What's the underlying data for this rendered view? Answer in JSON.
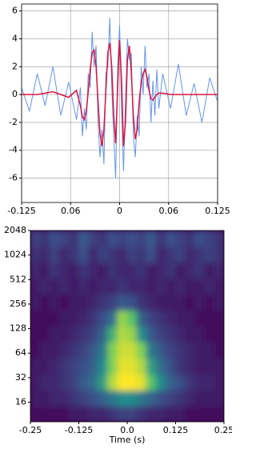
{
  "chart_data": [
    {
      "type": "line",
      "x": [
        -0.125,
        -0.115,
        -0.105,
        -0.095,
        -0.085,
        -0.075,
        -0.065,
        -0.055,
        -0.05,
        -0.0475,
        -0.045,
        -0.0425,
        -0.04,
        -0.0375,
        -0.035,
        -0.0325,
        -0.03,
        -0.0275,
        -0.025,
        -0.0225,
        -0.02,
        -0.0175,
        -0.015,
        -0.0125,
        -0.01,
        -0.0075,
        -0.005,
        -0.0025,
        0,
        0.0025,
        0.005,
        0.0075,
        0.01,
        0.0125,
        0.015,
        0.0175,
        0.02,
        0.0225,
        0.025,
        0.0275,
        0.03,
        0.0325,
        0.035,
        0.0375,
        0.04,
        0.0425,
        0.045,
        0.0475,
        0.05,
        0.055,
        0.065,
        0.075,
        0.085,
        0.095,
        0.105,
        0.115,
        0.125
      ],
      "series": [
        {
          "color": "#6495ed",
          "values": [
            0.5,
            -1.2,
            1.5,
            -0.8,
            2.0,
            -1.5,
            0.9,
            -1.8,
            0.5,
            -3.0,
            -1.0,
            -2.5,
            1.5,
            0.5,
            4.5,
            2.0,
            3.5,
            -2.0,
            -4.5,
            -2.5,
            -5.0,
            1.5,
            2.0,
            5.5,
            0.5,
            -3.0,
            -6.0,
            2.0,
            5.0,
            -1.0,
            -5.5,
            -0.5,
            4.0,
            2.5,
            3.0,
            -3.0,
            -4.5,
            -1.5,
            -3.0,
            2.0,
            0.0,
            3.5,
            0.5,
            1.5,
            -2.0,
            1.0,
            -1.5,
            1.8,
            -1.0,
            1.5,
            -1.0,
            2.2,
            -1.5,
            0.8,
            -2.0,
            1.2,
            -0.5
          ]
        },
        {
          "color": "#dc143c",
          "values": [
            0,
            0,
            0,
            0.1,
            0.2,
            0,
            -0.2,
            0.3,
            -0.8,
            -1.6,
            -1.8,
            -1.2,
            0.2,
            1.8,
            3.0,
            3.2,
            2.0,
            -0.5,
            -2.8,
            -3.7,
            -2.5,
            0.3,
            3.0,
            3.7,
            2.0,
            -1.5,
            -3.5,
            0.5,
            3.9,
            1.0,
            -3.7,
            -2.0,
            2.5,
            3.5,
            1.5,
            -1.5,
            -3.2,
            -2.5,
            -0.5,
            0.8,
            1.5,
            1.8,
            1.2,
            0.3,
            -0.3,
            -0.4,
            -0.2,
            0,
            0.1,
            0.1,
            0,
            0,
            0,
            0,
            0,
            0,
            0
          ]
        }
      ],
      "xlim": [
        -0.125,
        0.125
      ],
      "ylim": [
        -7.75,
        6.5
      ],
      "xticks": [
        -0.125,
        {
          "value": -0.0625,
          "label": "0.06"
        },
        0,
        {
          "value": 0.0625,
          "label": "0.06"
        },
        0.125
      ],
      "yticks": [
        -6,
        -4,
        -2,
        0,
        2,
        4,
        6
      ],
      "grid": true
    },
    {
      "type": "heatmap",
      "x": [
        -0.2375,
        -0.2125,
        -0.1875,
        -0.1625,
        -0.1375,
        -0.1125,
        -0.0875,
        -0.0625,
        -0.0375,
        -0.0125,
        0.0125,
        0.0375,
        0.0625,
        0.0875,
        0.1125,
        0.1375,
        0.1625,
        0.1875,
        0.2125,
        0.2375
      ],
      "y": [
        11.5,
        18,
        28,
        44,
        70,
        110,
        170,
        270,
        420,
        660,
        1040,
        1630
      ],
      "values": [
        [
          1,
          1,
          1,
          1,
          2,
          2,
          3,
          3,
          4,
          5,
          5,
          4,
          3,
          3,
          2,
          2,
          1,
          1,
          1,
          1
        ],
        [
          2,
          2,
          3,
          3,
          4,
          5,
          6,
          8,
          10,
          12,
          12,
          10,
          8,
          6,
          5,
          4,
          3,
          2,
          2,
          2
        ],
        [
          2,
          3,
          3,
          4,
          5,
          7,
          9,
          14,
          22,
          25,
          25,
          24,
          18,
          12,
          8,
          6,
          4,
          3,
          3,
          2
        ],
        [
          2,
          2,
          3,
          4,
          5,
          6,
          8,
          12,
          20,
          24,
          24,
          22,
          14,
          9,
          6,
          4,
          3,
          2,
          2,
          2
        ],
        [
          1,
          2,
          2,
          3,
          4,
          5,
          7,
          10,
          20,
          23,
          23,
          20,
          10,
          7,
          5,
          4,
          3,
          2,
          2,
          1
        ],
        [
          1,
          1,
          2,
          2,
          3,
          4,
          5,
          8,
          16,
          22,
          21,
          12,
          7,
          5,
          4,
          3,
          2,
          2,
          1,
          1
        ],
        [
          1,
          1,
          1,
          2,
          2,
          3,
          4,
          6,
          9,
          21,
          18,
          8,
          5,
          4,
          3,
          2,
          2,
          1,
          1,
          1
        ],
        [
          2,
          1,
          2,
          1,
          2,
          2,
          3,
          4,
          5,
          7,
          6,
          4,
          3,
          2,
          2,
          2,
          1,
          2,
          1,
          2
        ],
        [
          2,
          3,
          2,
          3,
          2,
          3,
          2,
          3,
          3,
          4,
          3,
          3,
          2,
          3,
          2,
          3,
          2,
          2,
          3,
          2
        ],
        [
          3,
          2,
          4,
          3,
          2,
          4,
          3,
          2,
          4,
          3,
          3,
          4,
          2,
          3,
          4,
          2,
          3,
          4,
          2,
          3
        ],
        [
          4,
          3,
          5,
          3,
          4,
          6,
          3,
          5,
          4,
          3,
          5,
          4,
          6,
          3,
          4,
          5,
          3,
          4,
          5,
          4
        ],
        [
          5,
          4,
          6,
          5,
          4,
          7,
          5,
          4,
          6,
          5,
          6,
          5,
          7,
          4,
          6,
          5,
          4,
          6,
          5,
          4
        ]
      ],
      "colormap": "viridis",
      "clim": [
        0,
        25
      ],
      "log_y": true,
      "xlim": [
        -0.25,
        0.25
      ],
      "ylim": [
        9.2,
        2048
      ],
      "xticks": [
        -0.25,
        -0.125,
        {
          "value": 0,
          "label": "0.0"
        },
        0.125,
        0.25
      ],
      "yticks": [
        16,
        32,
        64,
        128,
        256,
        512,
        1024,
        2048
      ],
      "xlabel": "Time (s)"
    }
  ]
}
